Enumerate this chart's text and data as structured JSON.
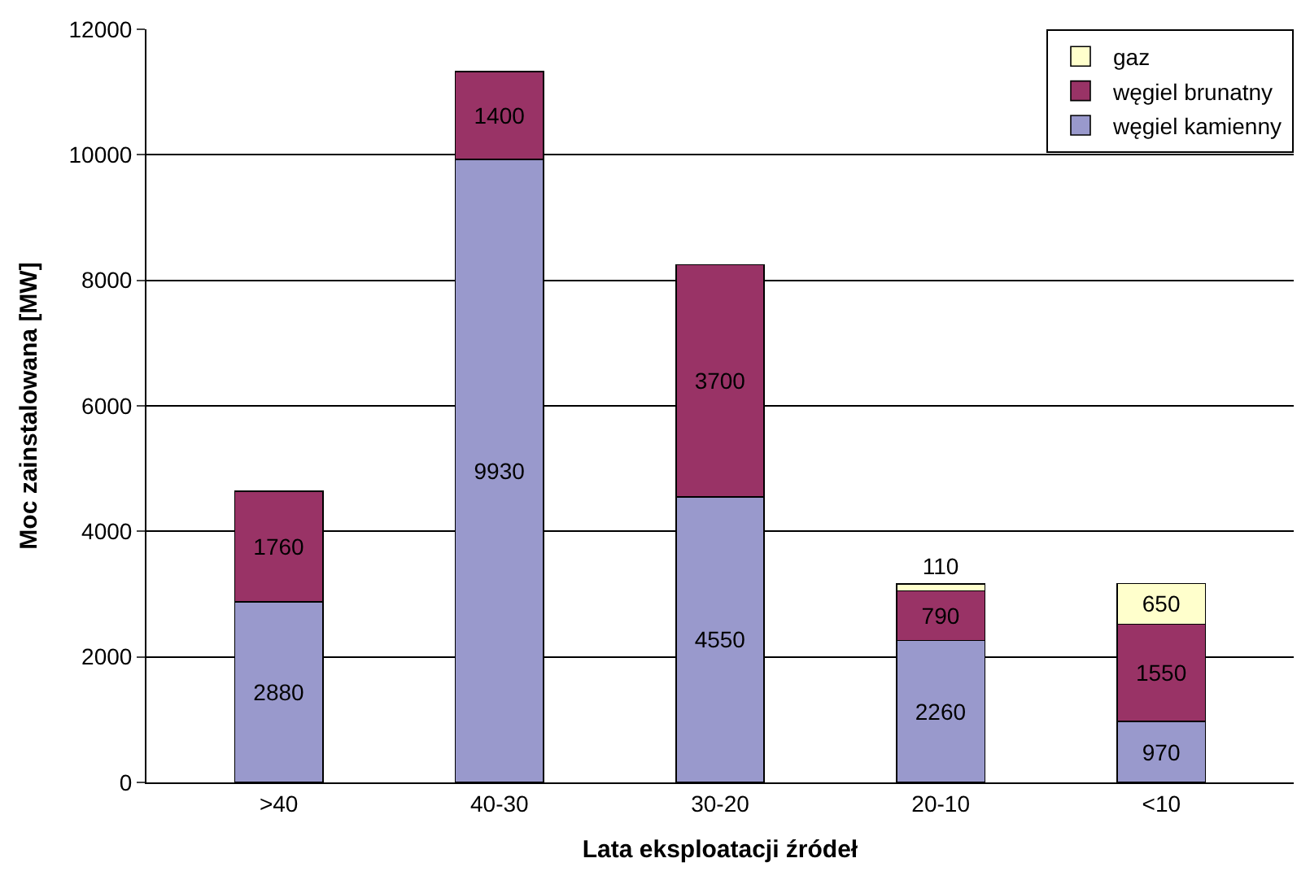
{
  "chart_data": {
    "type": "bar",
    "stacked": true,
    "xlabel": "Lata eksploatacji źródeł",
    "ylabel": "Moc zainstalowana [MW]",
    "categories": [
      ">40",
      "40-30",
      "30-20",
      "20-10",
      "<10"
    ],
    "series": [
      {
        "name": "węgiel kamienny",
        "color": "#9999cc",
        "values": [
          2880,
          9930,
          4550,
          2260,
          970
        ]
      },
      {
        "name": "węgiel brunatny",
        "color": "#993366",
        "values": [
          1760,
          1400,
          3700,
          790,
          1550
        ]
      },
      {
        "name": "gaz",
        "color": "#ffffcc",
        "values": [
          null,
          null,
          null,
          110,
          650
        ]
      }
    ],
    "ylim": [
      0,
      12000
    ],
    "yticks": [
      0,
      2000,
      4000,
      6000,
      8000,
      10000,
      12000
    ],
    "grid": "y",
    "legend": "top right",
    "data_labels": true
  }
}
